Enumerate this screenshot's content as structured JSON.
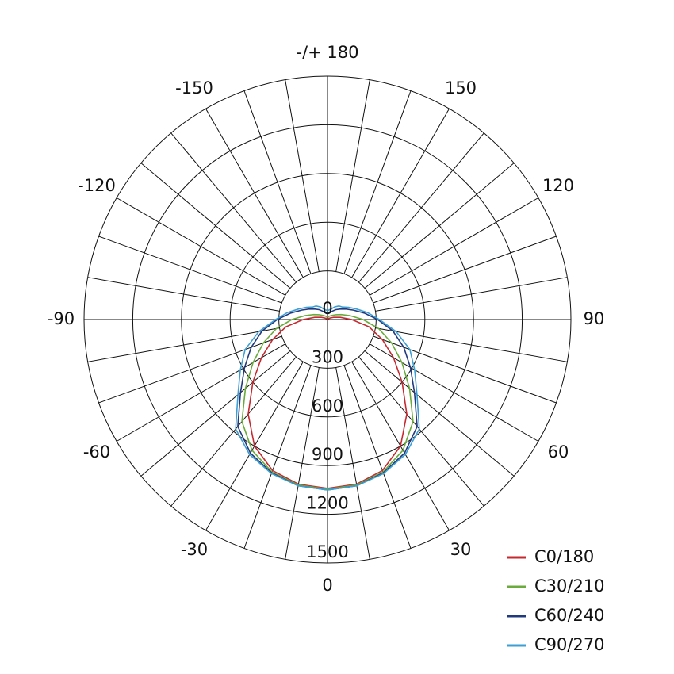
{
  "chart_data": {
    "type": "polar",
    "x": [
      -180,
      -170,
      -160,
      -150,
      -140,
      -130,
      -120,
      -110,
      -100,
      -90,
      -80,
      -70,
      -60,
      -50,
      -40,
      -30,
      -20,
      -10,
      0,
      10,
      20,
      30,
      40,
      50,
      60,
      70,
      80,
      90,
      100,
      110,
      120,
      130,
      140,
      150,
      160,
      170,
      180
    ],
    "series": [
      {
        "name": "C0/180",
        "color": "#c42a2f",
        "values": [
          10,
          10,
          10,
          10,
          10,
          10,
          20,
          40,
          80,
          150,
          260,
          360,
          470,
          600,
          760,
          900,
          990,
          1030,
          1040,
          1030,
          990,
          900,
          760,
          600,
          470,
          360,
          260,
          150,
          80,
          40,
          20,
          10,
          10,
          10,
          10,
          10,
          10
        ]
      },
      {
        "name": "C30/210",
        "color": "#6aab3c",
        "values": [
          20,
          20,
          20,
          25,
          30,
          40,
          60,
          90,
          140,
          220,
          320,
          420,
          530,
          660,
          820,
          930,
          1000,
          1035,
          1045,
          1035,
          1000,
          930,
          820,
          660,
          530,
          420,
          320,
          220,
          140,
          90,
          60,
          40,
          30,
          25,
          20,
          20,
          20
        ]
      },
      {
        "name": "C60/240",
        "color": "#213a7d",
        "values": [
          40,
          40,
          45,
          60,
          80,
          100,
          130,
          170,
          230,
          310,
          410,
          500,
          590,
          700,
          860,
          950,
          1005,
          1040,
          1050,
          1040,
          1005,
          950,
          860,
          700,
          590,
          500,
          410,
          310,
          230,
          170,
          130,
          100,
          80,
          60,
          45,
          40,
          40
        ]
      },
      {
        "name": "C90/270",
        "color": "#3d9fd3",
        "values": [
          55,
          60,
          70,
          90,
          110,
          120,
          150,
          190,
          250,
          320,
          430,
          540,
          620,
          720,
          880,
          960,
          1010,
          1040,
          1050,
          1040,
          1010,
          960,
          880,
          720,
          620,
          540,
          430,
          320,
          250,
          190,
          150,
          120,
          110,
          90,
          70,
          60,
          55
        ]
      }
    ],
    "rlim": [
      0,
      1500
    ],
    "rticks": [
      0,
      300,
      600,
      900,
      1200,
      1500
    ],
    "xticks": [
      0,
      30,
      60,
      90,
      120,
      150,
      {
        "value": 180,
        "label": "-/+ 180"
      },
      -150,
      -120,
      -90,
      -60,
      -30
    ],
    "angle_gridlines": [
      -170,
      -160,
      -150,
      -140,
      -130,
      -120,
      -110,
      -100,
      -90,
      -80,
      -70,
      -60,
      -50,
      -40,
      -30,
      -20,
      -10,
      0,
      10,
      20,
      30,
      40,
      50,
      60,
      70,
      80,
      90,
      100,
      110,
      120,
      130,
      140,
      150,
      160,
      170,
      180
    ],
    "legend": "lower right"
  }
}
